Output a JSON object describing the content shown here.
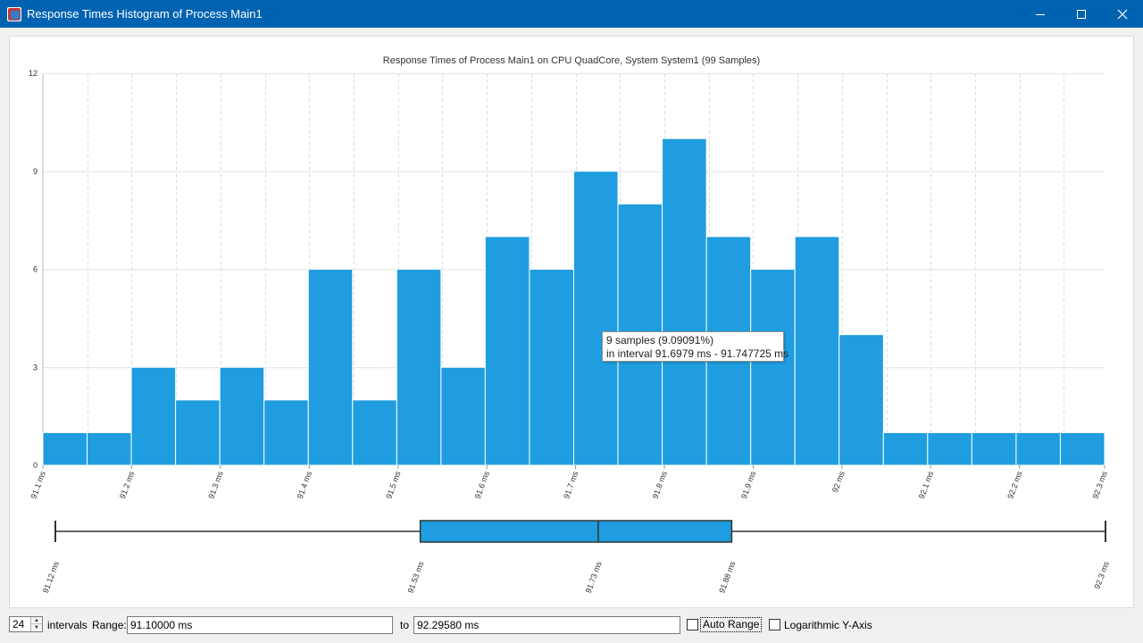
{
  "window": {
    "title": "Response Times Histogram of Process Main1",
    "title_bar_color": "#0063b1",
    "controls": [
      "minimize-icon",
      "maximize-icon",
      "close-icon"
    ]
  },
  "chart_data": {
    "type": "bar",
    "title": "Response Times of Process Main1 on CPU QuadCore, System System1 (99 Samples)",
    "xlabel": "",
    "ylabel": "",
    "bar_color": "#1f9de0",
    "xlim_ms": [
      91.1,
      92.2958
    ],
    "bin_count": 24,
    "ylim": [
      0,
      12
    ],
    "y_ticks": [
      "0",
      "3",
      "6",
      "9",
      "12"
    ],
    "x_ticks": [
      {
        "value": 91.1,
        "label": "91.1 ms"
      },
      {
        "value": 91.2,
        "label": "91.2 ms"
      },
      {
        "value": 91.3,
        "label": "91.3 ms"
      },
      {
        "value": 91.4,
        "label": "91.4 ms"
      },
      {
        "value": 91.5,
        "label": "91.5 ms"
      },
      {
        "value": 91.6,
        "label": "91.6 ms"
      },
      {
        "value": 91.7,
        "label": "91.7 ms"
      },
      {
        "value": 91.8,
        "label": "91.8 ms"
      },
      {
        "value": 91.9,
        "label": "91.9 ms"
      },
      {
        "value": 92.0,
        "label": "92 ms"
      },
      {
        "value": 92.1,
        "label": "92.1 ms"
      },
      {
        "value": 92.2,
        "label": "92.2 ms"
      },
      {
        "value": 92.2958,
        "label": "92.3 ms"
      }
    ],
    "values": [
      1,
      1,
      3,
      2,
      3,
      2,
      6,
      2,
      6,
      3,
      7,
      6,
      9,
      8,
      10,
      7,
      6,
      7,
      4,
      1,
      1,
      1,
      1,
      1
    ],
    "grid": true,
    "boxplot": {
      "min": 91.12,
      "q1": 91.53,
      "median": 91.73,
      "q3": 91.88,
      "max": 92.3,
      "labels": [
        "91.12 ms",
        "91.53 ms",
        "91.73 ms",
        "91.88 ms",
        "92.3 ms"
      ]
    },
    "tooltip": {
      "line1": "9 samples (9.09091%)",
      "line2": "in interval 91.6979 ms - 91.747725 ms"
    }
  },
  "controls": {
    "intervals_value": "24",
    "intervals_label": "intervals",
    "range_label": "Range:",
    "range_from": "91.10000 ms",
    "to_label": "to",
    "range_to": "92.29580 ms",
    "auto_range_label": "Auto Range",
    "auto_range_checked": false,
    "log_axis_label": "Logarithmic Y-Axis",
    "log_axis_checked": false
  }
}
